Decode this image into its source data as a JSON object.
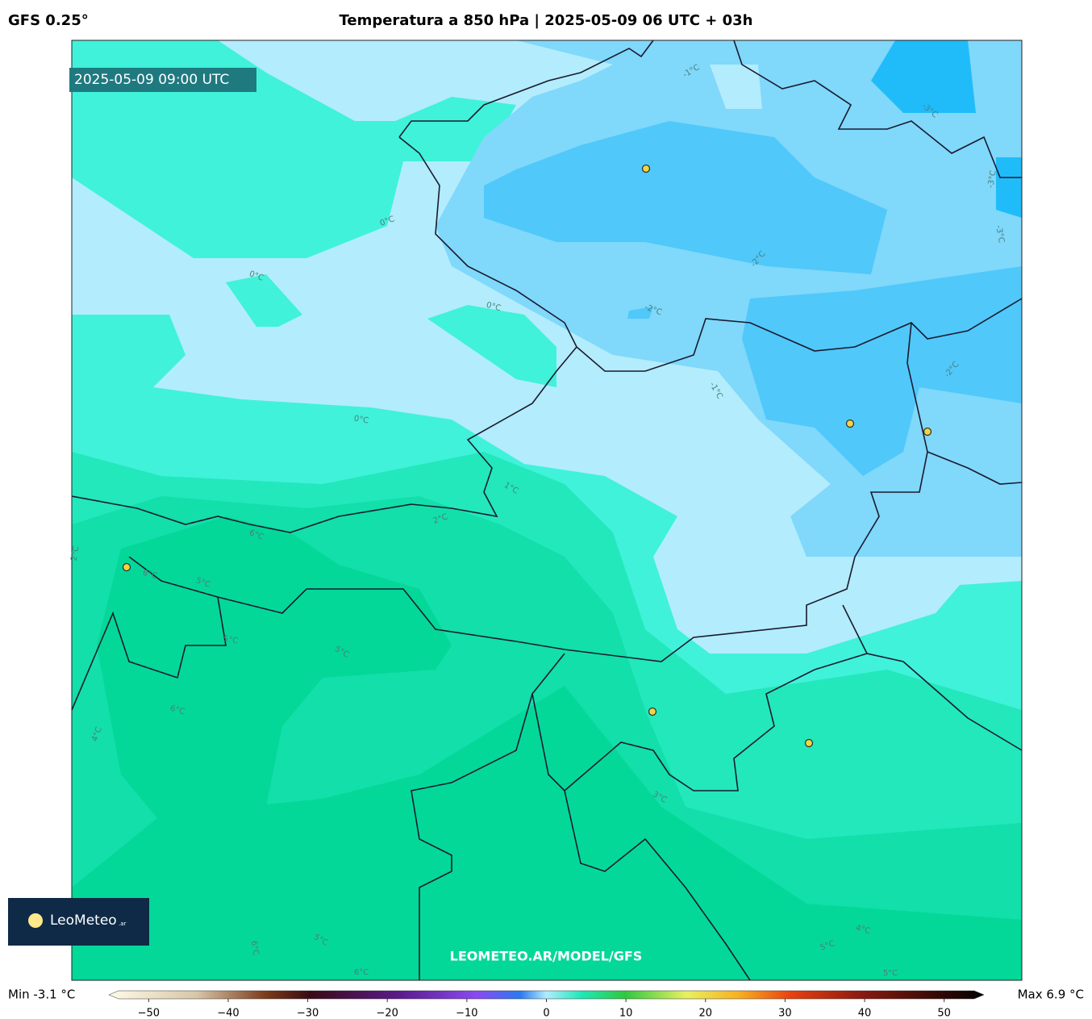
{
  "header": {
    "model": "GFS 0.25°",
    "title": "Temperatura a 850 hPa | 2025-05-09 06 UTC + 03h"
  },
  "map": {
    "timestamp": "2025-05-09 09:00 UTC",
    "watermark": "LEOMETEO.AR/MODEL/GFS",
    "contour_labels": [
      "-1°C",
      "-3°C",
      "-3°C",
      "-3°C",
      "0°C",
      "0°C",
      "0°C",
      "-2°C",
      "-2°C",
      "-1°C",
      "-2°C",
      "0°C",
      "1°C",
      "2°C",
      "6°C",
      "6°C",
      "5°C",
      "2°C",
      "5°C",
      "5°C",
      "6°C",
      "4°C",
      "3°C",
      "4°C",
      "5°C",
      "6°C",
      "5°C",
      "6°C",
      "5°C"
    ]
  },
  "logo": {
    "name": "LeoMeteo",
    "suffix": ".ar"
  },
  "colorbar": {
    "min_label": "Min -3.1 °C",
    "max_label": "Max 6.9 °C",
    "range": [
      -55,
      55
    ],
    "ticks": [
      {
        "value": -50,
        "label": "−50"
      },
      {
        "value": -40,
        "label": "−40"
      },
      {
        "value": -30,
        "label": "−30"
      },
      {
        "value": -20,
        "label": "−20"
      },
      {
        "value": -10,
        "label": "−10"
      },
      0,
      10,
      20,
      30,
      40,
      50
    ]
  }
}
